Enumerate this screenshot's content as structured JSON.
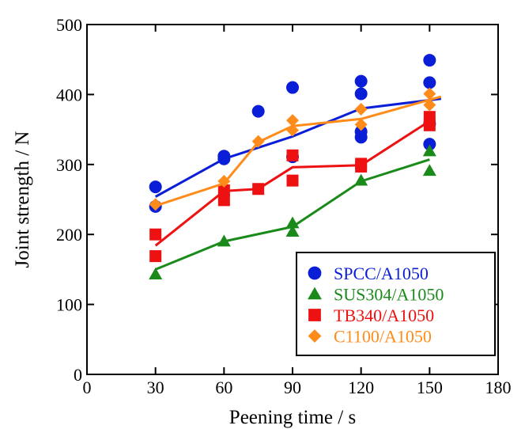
{
  "chart_data": {
    "type": "scatter",
    "title": "",
    "xlabel": "Peening time / s",
    "ylabel": "Joint strength / N",
    "xlim": [
      0,
      180
    ],
    "ylim": [
      0,
      500
    ],
    "xticks": [
      0,
      30,
      60,
      90,
      120,
      150,
      180
    ],
    "yticks": [
      0,
      100,
      200,
      300,
      400,
      500
    ],
    "grid": false,
    "legend_position": "bottom-right",
    "series": [
      {
        "name": "SPCC/A1050",
        "color": "#0a1ed8",
        "marker": "circle",
        "points": [
          [
            30,
            268
          ],
          [
            30,
            240
          ],
          [
            60,
            312
          ],
          [
            60,
            308
          ],
          [
            75,
            376
          ],
          [
            90,
            410
          ],
          [
            90,
            311
          ],
          [
            120,
            419
          ],
          [
            120,
            401
          ],
          [
            120,
            347
          ],
          [
            120,
            339
          ],
          [
            150,
            449
          ],
          [
            150,
            417
          ],
          [
            150,
            358
          ],
          [
            150,
            329
          ]
        ],
        "trend": [
          [
            30,
            254
          ],
          [
            60,
            308
          ],
          [
            90,
            340
          ],
          [
            120,
            380
          ],
          [
            155,
            394
          ]
        ]
      },
      {
        "name": "SUS304/A1050",
        "color": "#1a8a1a",
        "marker": "triangle",
        "points": [
          [
            30,
            143
          ],
          [
            60,
            190
          ],
          [
            90,
            216
          ],
          [
            90,
            204
          ],
          [
            120,
            277
          ],
          [
            150,
            319
          ],
          [
            150,
            291
          ]
        ],
        "trend": [
          [
            30,
            150
          ],
          [
            60,
            190
          ],
          [
            90,
            211
          ],
          [
            120,
            276
          ],
          [
            150,
            307
          ]
        ]
      },
      {
        "name": "TB340/A1050",
        "color": "#ee1111",
        "marker": "square",
        "points": [
          [
            30,
            200
          ],
          [
            30,
            169
          ],
          [
            60,
            263
          ],
          [
            60,
            249
          ],
          [
            75,
            265
          ],
          [
            90,
            313
          ],
          [
            90,
            277
          ],
          [
            120,
            301
          ],
          [
            120,
            297
          ],
          [
            150,
            368
          ],
          [
            150,
            356
          ]
        ],
        "trend": [
          [
            30,
            184
          ],
          [
            60,
            262
          ],
          [
            75,
            265
          ],
          [
            90,
            296
          ],
          [
            120,
            299
          ],
          [
            150,
            362
          ]
        ]
      },
      {
        "name": "C1100/A1050",
        "color": "#ff8c1a",
        "marker": "diamond",
        "points": [
          [
            30,
            243
          ],
          [
            60,
            276
          ],
          [
            75,
            333
          ],
          [
            90,
            363
          ],
          [
            90,
            349
          ],
          [
            120,
            379
          ],
          [
            120,
            357
          ],
          [
            150,
            401
          ],
          [
            150,
            385
          ]
        ],
        "trend": [
          [
            30,
            241
          ],
          [
            60,
            273
          ],
          [
            75,
            332
          ],
          [
            90,
            355
          ],
          [
            120,
            365
          ],
          [
            155,
            397
          ]
        ]
      }
    ]
  }
}
